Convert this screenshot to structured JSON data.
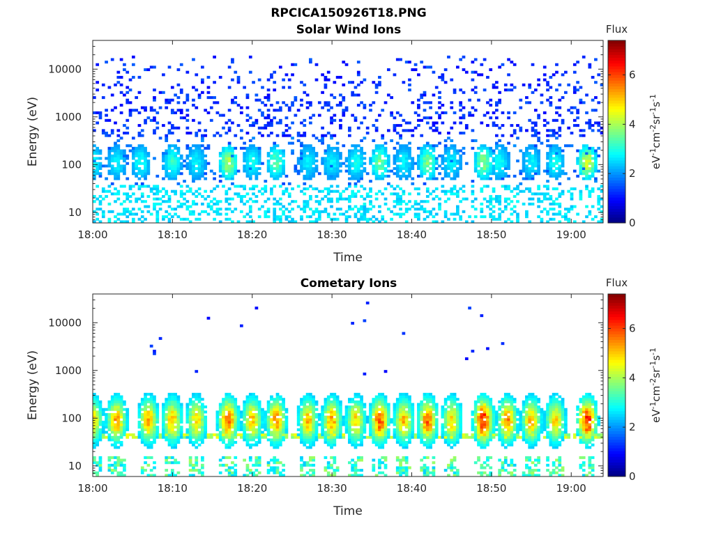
{
  "figure_title": "RPCICA150926T18.PNG",
  "chart_data": [
    {
      "type": "heatmap",
      "title": "Solar Wind Ions",
      "xlabel": "Time",
      "ylabel": "Energy (eV)",
      "y_scale": "log",
      "ylim": [
        6,
        40000
      ],
      "xlim": [
        "18:00",
        "19:04"
      ],
      "x_ticks": [
        "18:00",
        "18:10",
        "18:20",
        "18:30",
        "18:40",
        "18:50",
        "19:00"
      ],
      "y_ticks": [
        "10",
        "100",
        "1000",
        "10000"
      ],
      "grid": false,
      "colorbar": {
        "title": "Flux",
        "label_base": "eV",
        "label_sup1": "-1",
        "label_mid1": "cm",
        "label_sup2": "-2",
        "label_mid2": "sr",
        "label_sup3": "-1",
        "label_mid3": "s",
        "label_sup4": "-1",
        "range": [
          0,
          7.4
        ],
        "ticks": [
          "0",
          "2",
          "4",
          "6"
        ],
        "colormap": "jet"
      },
      "bursts": [
        {
          "t": "18:00",
          "peak": 3.0
        },
        {
          "t": "18:03",
          "peak": 2.8
        },
        {
          "t": "18:06",
          "peak": 3.0
        },
        {
          "t": "18:10",
          "peak": 3.2
        },
        {
          "t": "18:13",
          "peak": 2.8
        },
        {
          "t": "18:17",
          "peak": 4.2
        },
        {
          "t": "18:20",
          "peak": 3.0
        },
        {
          "t": "18:23",
          "peak": 3.6
        },
        {
          "t": "18:27",
          "peak": 2.8
        },
        {
          "t": "18:30",
          "peak": 2.8
        },
        {
          "t": "18:33",
          "peak": 3.0
        },
        {
          "t": "18:36",
          "peak": 3.8
        },
        {
          "t": "18:39",
          "peak": 2.8
        },
        {
          "t": "18:42",
          "peak": 3.8
        },
        {
          "t": "18:45",
          "peak": 2.8
        },
        {
          "t": "18:49",
          "peak": 4.0
        },
        {
          "t": "18:51",
          "peak": 3.0
        },
        {
          "t": "18:55",
          "peak": 2.8
        },
        {
          "t": "18:58",
          "peak": 3.0
        },
        {
          "t": "19:02",
          "peak": 4.6
        }
      ]
    },
    {
      "type": "heatmap",
      "title": "Cometary Ions",
      "xlabel": "Time",
      "ylabel": "Energy (eV)",
      "y_scale": "log",
      "ylim": [
        6,
        40000
      ],
      "xlim": [
        "18:00",
        "19:04"
      ],
      "x_ticks": [
        "18:00",
        "18:10",
        "18:20",
        "18:30",
        "18:40",
        "18:50",
        "19:00"
      ],
      "y_ticks": [
        "10",
        "100",
        "1000",
        "10000"
      ],
      "grid": false,
      "colorbar": {
        "title": "Flux",
        "label_base": "eV",
        "label_sup1": "-1",
        "label_mid1": "cm",
        "label_sup2": "-2",
        "label_mid2": "sr",
        "label_sup3": "-1",
        "label_mid3": "s",
        "label_sup4": "-1",
        "range": [
          0,
          7.4
        ],
        "ticks": [
          "0",
          "2",
          "4",
          "6"
        ],
        "colormap": "jet"
      },
      "bursts": [
        {
          "t": "18:00",
          "peak": 5.0
        },
        {
          "t": "18:03",
          "peak": 5.4
        },
        {
          "t": "18:07",
          "peak": 5.4
        },
        {
          "t": "18:10",
          "peak": 5.2
        },
        {
          "t": "18:13",
          "peak": 5.0
        },
        {
          "t": "18:17",
          "peak": 6.0
        },
        {
          "t": "18:20",
          "peak": 5.2
        },
        {
          "t": "18:23",
          "peak": 5.6
        },
        {
          "t": "18:27",
          "peak": 5.2
        },
        {
          "t": "18:30",
          "peak": 5.4
        },
        {
          "t": "18:33",
          "peak": 5.0
        },
        {
          "t": "18:36",
          "peak": 6.0
        },
        {
          "t": "18:39",
          "peak": 5.2
        },
        {
          "t": "18:42",
          "peak": 5.8
        },
        {
          "t": "18:45",
          "peak": 5.0
        },
        {
          "t": "18:49",
          "peak": 6.6
        },
        {
          "t": "18:52",
          "peak": 5.6
        },
        {
          "t": "18:55",
          "peak": 5.2
        },
        {
          "t": "18:58",
          "peak": 5.0
        },
        {
          "t": "19:02",
          "peak": 6.4
        }
      ]
    }
  ]
}
